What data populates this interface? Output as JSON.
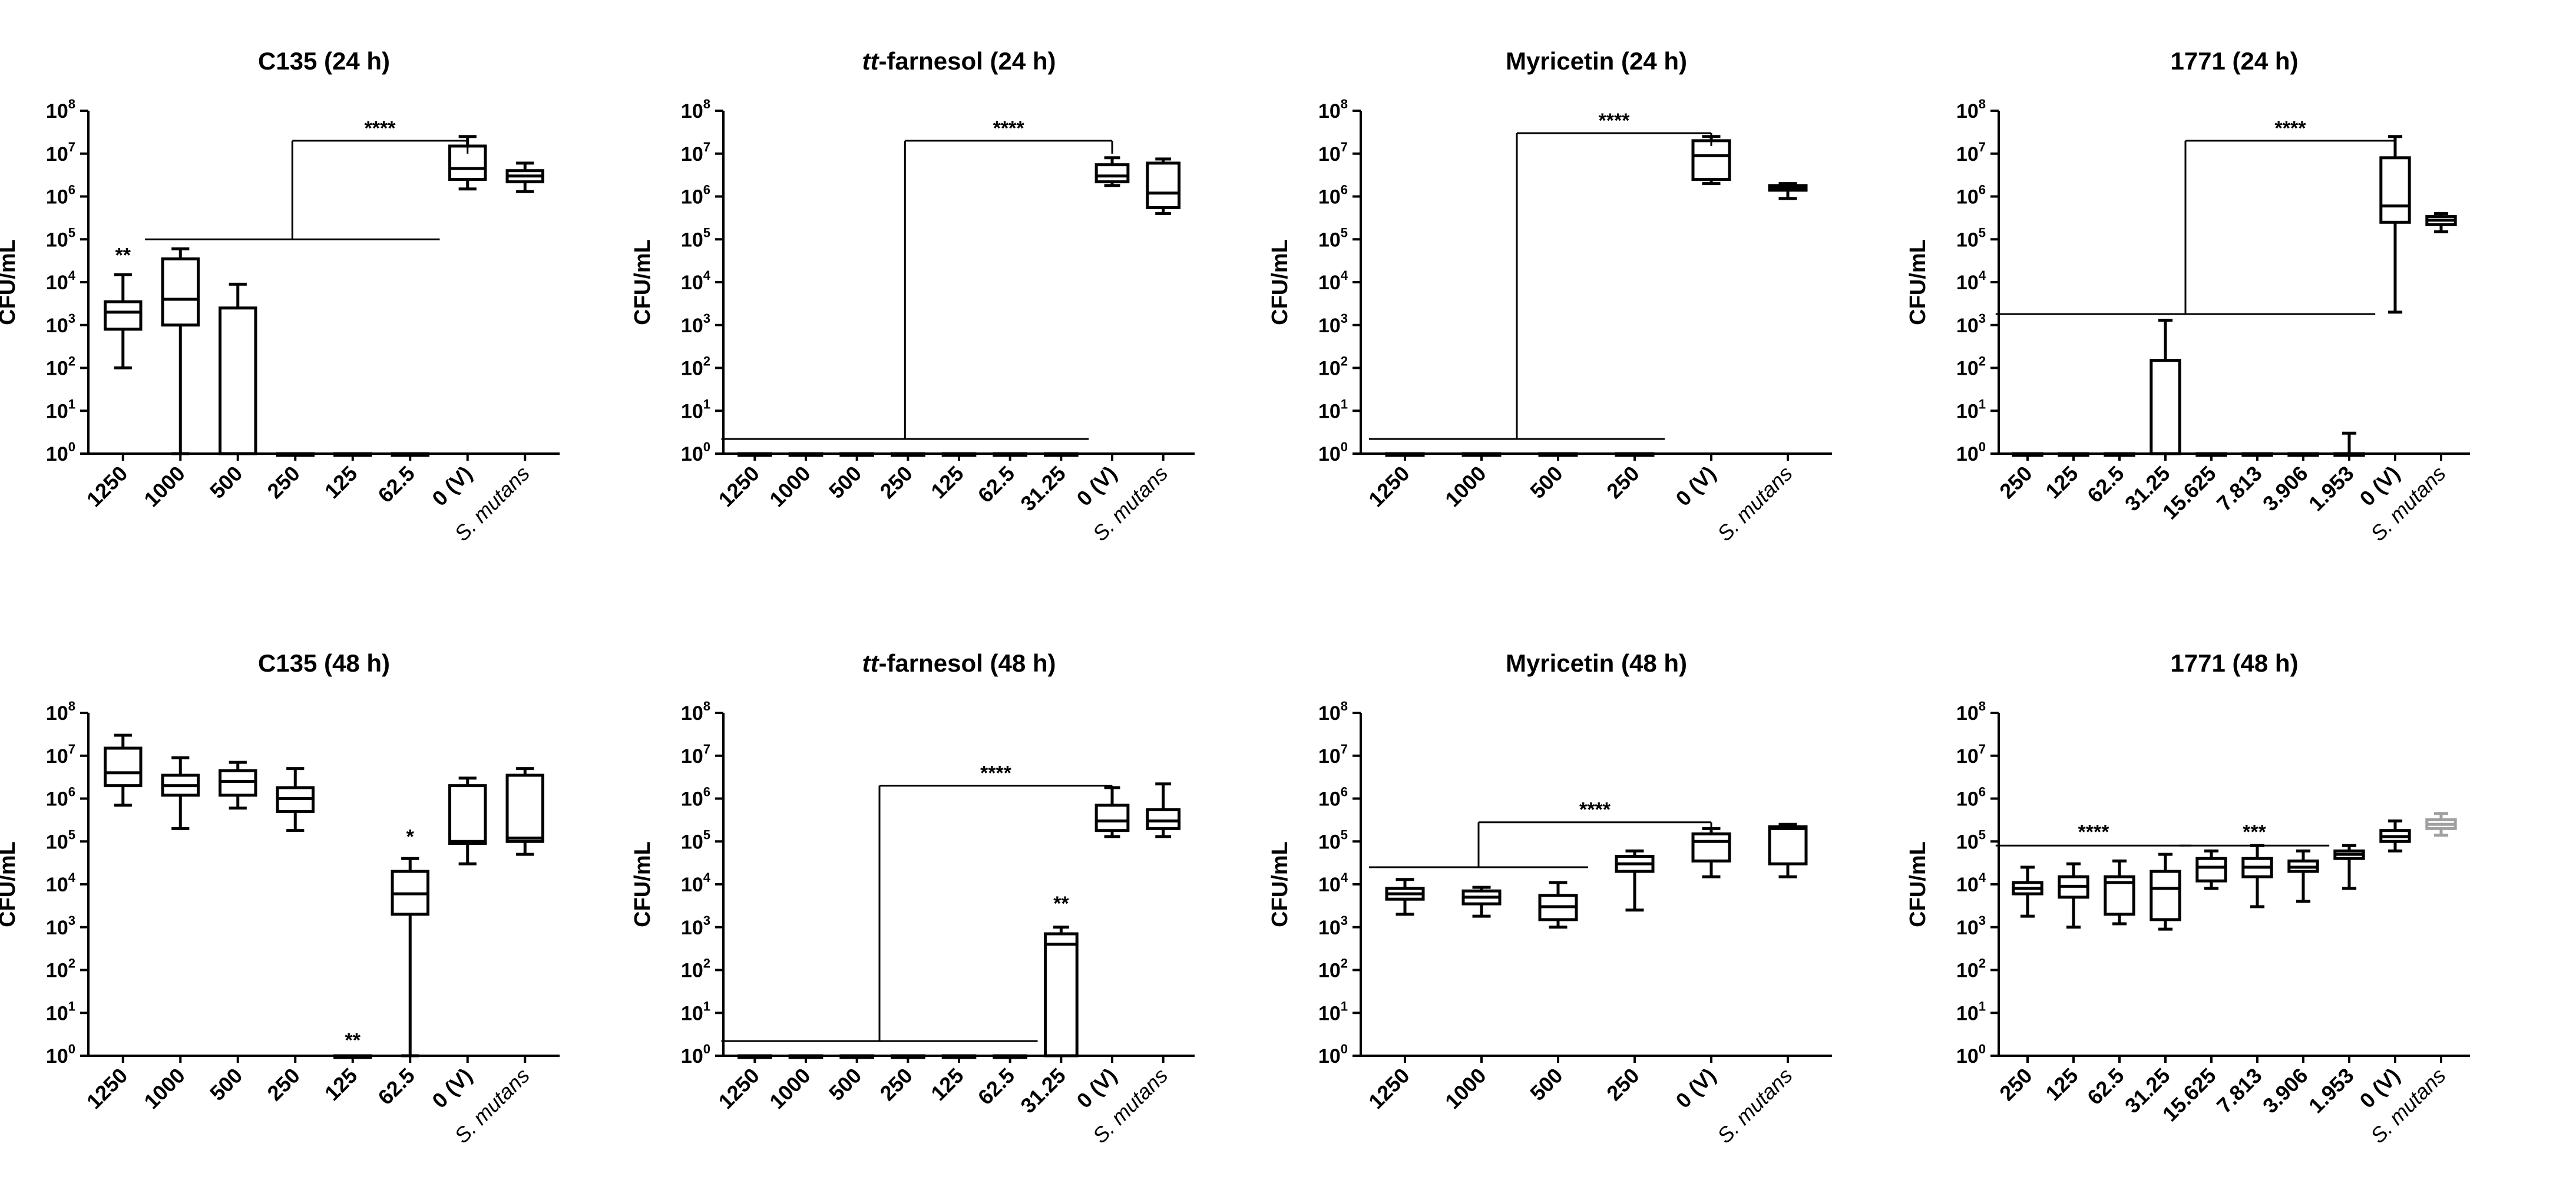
{
  "chart_data": [
    {
      "type": "box",
      "title": "C135 (24 h)",
      "ylabel": "CFU/mL",
      "yscale": "log10",
      "ylim": [
        1,
        100000000
      ],
      "categories": [
        "1250",
        "1000",
        "500",
        "250",
        "125",
        "62.5",
        "0 (V)",
        "S. mutans"
      ],
      "boxes": [
        {
          "min": 100,
          "q1": 800,
          "median": 2000,
          "q3": 3500,
          "max": 15000
        },
        {
          "min": 1,
          "q1": 1000,
          "median": 4000,
          "q3": 35000,
          "max": 60000
        },
        {
          "min": 1,
          "q1": 1,
          "median": 1,
          "q3": 2500,
          "max": 9000
        },
        {
          "min": 1,
          "q1": 1,
          "median": 1,
          "q3": 1,
          "max": 1
        },
        {
          "min": 1,
          "q1": 1,
          "median": 1,
          "q3": 1,
          "max": 1
        },
        {
          "min": 1,
          "q1": 1,
          "median": 1,
          "q3": 1,
          "max": 1
        },
        {
          "min": 1500000,
          "q1": 2500000,
          "median": 4500000,
          "q3": 15000000,
          "max": 25000000
        },
        {
          "min": 1300000,
          "q1": 2200000,
          "median": 3000000,
          "q3": 4000000,
          "max": 6000000
        }
      ],
      "annotations": [
        {
          "type": "label",
          "text": "**",
          "index": 0,
          "y": 30000
        }
      ],
      "comparisons": [
        {
          "text": "****",
          "from": 1,
          "to": 5,
          "y_line": 100000,
          "y_bracket": 20000000,
          "target": 6
        }
      ]
    },
    {
      "type": "box",
      "title_prefix": "tt",
      "title_rest": "-farnesol (24 h)",
      "ylabel": "CFU/mL",
      "yscale": "log10",
      "ylim": [
        1,
        100000000
      ],
      "categories": [
        "1250",
        "1000",
        "500",
        "250",
        "125",
        "62.5",
        "31.25",
        "0 (V)",
        "S. mutans"
      ],
      "boxes": [
        {
          "min": 1,
          "q1": 1,
          "median": 1,
          "q3": 1,
          "max": 1
        },
        {
          "min": 1,
          "q1": 1,
          "median": 1,
          "q3": 1,
          "max": 1
        },
        {
          "min": 1,
          "q1": 1,
          "median": 1,
          "q3": 1,
          "max": 1
        },
        {
          "min": 1,
          "q1": 1,
          "median": 1,
          "q3": 1,
          "max": 1
        },
        {
          "min": 1,
          "q1": 1,
          "median": 1,
          "q3": 1,
          "max": 1
        },
        {
          "min": 1,
          "q1": 1,
          "median": 1,
          "q3": 1,
          "max": 1
        },
        {
          "min": 1,
          "q1": 1,
          "median": 1,
          "q3": 1,
          "max": 1
        },
        {
          "min": 1800000,
          "q1": 2200000,
          "median": 3000000,
          "q3": 5500000,
          "max": 8000000
        },
        {
          "min": 400000,
          "q1": 550000,
          "median": 1200000,
          "q3": 6000000,
          "max": 7500000
        }
      ],
      "annotations": [],
      "comparisons": [
        {
          "text": "****",
          "from": 0,
          "to": 6,
          "y_line": 2.2,
          "y_bracket": 20000000,
          "target": 7
        }
      ]
    },
    {
      "type": "box",
      "title": "Myricetin (24 h)",
      "ylabel": "CFU/mL",
      "yscale": "log10",
      "ylim": [
        1,
        100000000
      ],
      "categories": [
        "1250",
        "1000",
        "500",
        "250",
        "0 (V)",
        "S. mutans"
      ],
      "boxes": [
        {
          "min": 1,
          "q1": 1,
          "median": 1,
          "q3": 1,
          "max": 1
        },
        {
          "min": 1,
          "q1": 1,
          "median": 1,
          "q3": 1,
          "max": 1
        },
        {
          "min": 1,
          "q1": 1,
          "median": 1,
          "q3": 1,
          "max": 1
        },
        {
          "min": 1,
          "q1": 1,
          "median": 1,
          "q3": 1,
          "max": 1
        },
        {
          "min": 2000000,
          "q1": 2500000,
          "median": 9000000,
          "q3": 20000000,
          "max": 25000000
        },
        {
          "min": 900000,
          "q1": 1400000,
          "median": 1600000,
          "q3": 1800000,
          "max": 2000000
        }
      ],
      "annotations": [],
      "comparisons": [
        {
          "text": "****",
          "from": 0,
          "to": 3,
          "y_line": 2.2,
          "y_bracket": 30000000,
          "target": 4
        }
      ]
    },
    {
      "type": "box",
      "title": "1771 (24 h)",
      "ylabel": "CFU/mL",
      "yscale": "log10",
      "ylim": [
        1,
        100000000
      ],
      "categories": [
        "250",
        "125",
        "62.5",
        "31.25",
        "15.625",
        "7.813",
        "3.906",
        "1.953",
        "0 (V)",
        "S. mutans"
      ],
      "boxes": [
        {
          "min": 1,
          "q1": 1,
          "median": 1,
          "q3": 1,
          "max": 1
        },
        {
          "min": 1,
          "q1": 1,
          "median": 1,
          "q3": 1,
          "max": 1
        },
        {
          "min": 1,
          "q1": 1,
          "median": 1,
          "q3": 1,
          "max": 1
        },
        {
          "min": 1,
          "q1": 1,
          "median": 1,
          "q3": 150,
          "max": 1300
        },
        {
          "min": 1,
          "q1": 1,
          "median": 1,
          "q3": 1,
          "max": 1
        },
        {
          "min": 1,
          "q1": 1,
          "median": 1,
          "q3": 1,
          "max": 1
        },
        {
          "min": 1,
          "q1": 1,
          "median": 1,
          "q3": 1,
          "max": 1
        },
        {
          "min": 1,
          "q1": 1,
          "median": 1,
          "q3": 1,
          "max": 3
        },
        {
          "min": 2000,
          "q1": 250000,
          "median": 600000,
          "q3": 8000000,
          "max": 25000000
        },
        {
          "min": 150000,
          "q1": 220000,
          "median": 280000,
          "q3": 340000,
          "max": 400000
        }
      ],
      "annotations": [],
      "comparisons": [
        {
          "text": "****",
          "from": 0,
          "to": 7,
          "y_line": 1800,
          "y_bracket": 20000000,
          "target": 8
        }
      ]
    },
    {
      "type": "box",
      "title": "C135 (48 h)",
      "ylabel": "CFU/mL",
      "yscale": "log10",
      "ylim": [
        1,
        100000000
      ],
      "categories": [
        "1250",
        "1000",
        "500",
        "250",
        "125",
        "62.5",
        "0 (V)",
        "S. mutans"
      ],
      "boxes": [
        {
          "min": 700000,
          "q1": 2000000,
          "median": 4000000,
          "q3": 15000000,
          "max": 30000000
        },
        {
          "min": 200000,
          "q1": 1200000,
          "median": 2000000,
          "q3": 3500000,
          "max": 9000000
        },
        {
          "min": 600000,
          "q1": 1200000,
          "median": 2500000,
          "q3": 4500000,
          "max": 7000000
        },
        {
          "min": 180000,
          "q1": 500000,
          "median": 1000000,
          "q3": 1800000,
          "max": 5000000
        },
        {
          "min": 1,
          "q1": 1,
          "median": 1,
          "q3": 1,
          "max": 1
        },
        {
          "min": 1,
          "q1": 2000,
          "median": 6000,
          "q3": 20000,
          "max": 40000
        },
        {
          "min": 30000,
          "q1": 90000,
          "median": 100000,
          "q3": 2000000,
          "max": 3000000
        },
        {
          "min": 50000,
          "q1": 100000,
          "median": 120000,
          "q3": 3500000,
          "max": 5000000
        }
      ],
      "annotations": [
        {
          "type": "label",
          "text": "**",
          "index": 4,
          "y": 1.6
        },
        {
          "type": "label",
          "text": "*",
          "index": 5,
          "y": 90000
        }
      ],
      "comparisons": []
    },
    {
      "type": "box",
      "title_prefix": "tt",
      "title_rest": "-farnesol (48 h)",
      "ylabel": "CFU/mL",
      "yscale": "log10",
      "ylim": [
        1,
        100000000
      ],
      "categories": [
        "1250",
        "1000",
        "500",
        "250",
        "125",
        "62.5",
        "31.25",
        "0 (V)",
        "S. mutans"
      ],
      "boxes": [
        {
          "min": 1,
          "q1": 1,
          "median": 1,
          "q3": 1,
          "max": 1
        },
        {
          "min": 1,
          "q1": 1,
          "median": 1,
          "q3": 1,
          "max": 1
        },
        {
          "min": 1,
          "q1": 1,
          "median": 1,
          "q3": 1,
          "max": 1
        },
        {
          "min": 1,
          "q1": 1,
          "median": 1,
          "q3": 1,
          "max": 1
        },
        {
          "min": 1,
          "q1": 1,
          "median": 1,
          "q3": 1,
          "max": 1
        },
        {
          "min": 1,
          "q1": 1,
          "median": 1,
          "q3": 1,
          "max": 1
        },
        {
          "min": 1,
          "q1": 1,
          "median": 400,
          "q3": 700,
          "max": 1000
        },
        {
          "min": 130000,
          "q1": 180000,
          "median": 300000,
          "q3": 700000,
          "max": 1800000
        },
        {
          "min": 130000,
          "q1": 200000,
          "median": 300000,
          "q3": 550000,
          "max": 2200000
        }
      ],
      "annotations": [
        {
          "type": "label",
          "text": "**",
          "index": 6,
          "y": 2500
        }
      ],
      "comparisons": [
        {
          "text": "****",
          "from": 0,
          "to": 5,
          "y_line": 2.2,
          "y_bracket": 2000000,
          "target": 7
        }
      ]
    },
    {
      "type": "box",
      "title": "Myricetin (48 h)",
      "ylabel": "CFU/mL",
      "yscale": "log10",
      "ylim": [
        1,
        100000000
      ],
      "categories": [
        "1250",
        "1000",
        "500",
        "250",
        "0 (V)",
        "S. mutans"
      ],
      "boxes": [
        {
          "min": 2000,
          "q1": 4500,
          "median": 6000,
          "q3": 8000,
          "max": 13000
        },
        {
          "min": 1800,
          "q1": 3500,
          "median": 5000,
          "q3": 7000,
          "max": 8500
        },
        {
          "min": 1000,
          "q1": 1500,
          "median": 3000,
          "q3": 5500,
          "max": 11000
        },
        {
          "min": 2500,
          "q1": 20000,
          "median": 30000,
          "q3": 45000,
          "max": 60000
        },
        {
          "min": 15000,
          "q1": 35000,
          "median": 100000,
          "q3": 150000,
          "max": 200000
        },
        {
          "min": 15000,
          "q1": 30000,
          "median": 200000,
          "q3": 220000,
          "max": 250000
        }
      ],
      "annotations": [],
      "comparisons": [
        {
          "text": "****",
          "from": 0,
          "to": 2,
          "y_line": 25000,
          "y_bracket": 280000,
          "target": 4
        }
      ]
    },
    {
      "type": "box",
      "title": "1771 (48 h)",
      "ylabel": "CFU/mL",
      "yscale": "log10",
      "ylim": [
        1,
        100000000
      ],
      "categories": [
        "250",
        "125",
        "62.5",
        "31.25",
        "15.625",
        "7.813",
        "3.906",
        "1.953",
        "0 (V)",
        "S. mutans"
      ],
      "boxes": [
        {
          "min": 1800,
          "q1": 6000,
          "median": 8000,
          "q3": 11000,
          "max": 25000
        },
        {
          "min": 1000,
          "q1": 5000,
          "median": 9000,
          "q3": 15000,
          "max": 30000
        },
        {
          "min": 1200,
          "q1": 2000,
          "median": 11000,
          "q3": 15000,
          "max": 35000
        },
        {
          "min": 900,
          "q1": 1500,
          "median": 8000,
          "q3": 20000,
          "max": 50000
        },
        {
          "min": 8000,
          "q1": 12000,
          "median": 25000,
          "q3": 40000,
          "max": 60000
        },
        {
          "min": 3000,
          "q1": 15000,
          "median": 25000,
          "q3": 40000,
          "max": 80000
        },
        {
          "min": 4000,
          "q1": 20000,
          "median": 25000,
          "q3": 35000,
          "max": 60000
        },
        {
          "min": 8000,
          "q1": 40000,
          "median": 50000,
          "q3": 60000,
          "max": 80000
        },
        {
          "min": 60000,
          "q1": 100000,
          "median": 130000,
          "q3": 180000,
          "max": 300000
        },
        {
          "min": 140000,
          "q1": 200000,
          "median": 250000,
          "q3": 320000,
          "max": 450000,
          "color": "#a0a0a0"
        }
      ],
      "annotations": [],
      "comparisons": [
        {
          "text": "****",
          "from": 0,
          "to": 3,
          "y_line": 80000,
          "y_bracket": null,
          "target": null
        },
        {
          "text": "***",
          "from": 4,
          "to": 6,
          "y_line": 80000,
          "y_bracket": null,
          "target": null
        }
      ]
    }
  ]
}
